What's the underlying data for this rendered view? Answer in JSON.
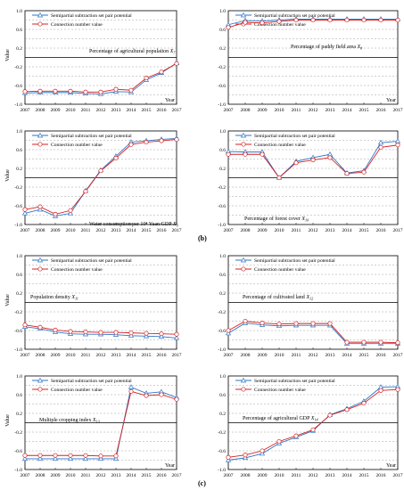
{
  "figure": {
    "panel_labels": [
      "(b)",
      "(c)"
    ],
    "legend": {
      "triangle_label": "Semipartial subtraction set pair potential",
      "circle_label": "Connection number value"
    },
    "colors": {
      "triangle": "#2e75c7",
      "circle": "#d42020",
      "axis": "#000000",
      "grid": "#888888"
    }
  },
  "chart_data": [
    {
      "type": "line",
      "title": "Percentage of agricultural population X7",
      "subscript_symbol": "X",
      "subscript": "7",
      "ylabel": "Value",
      "xlabel": "Year",
      "ylim": [
        -1.0,
        1.0
      ],
      "yticks": [
        "1.0",
        "0.6",
        "0.2",
        "-0.2",
        "-0.6",
        "-1.0"
      ],
      "categories": [
        "2007",
        "2008",
        "2009",
        "2010",
        "2011",
        "2012",
        "2013",
        "2014",
        "2015",
        "2016",
        "2017"
      ],
      "series": [
        {
          "name": "Semipartial subtraction set pair potential",
          "marker": "triangle",
          "values": [
            -0.76,
            -0.75,
            -0.75,
            -0.75,
            -0.77,
            -0.78,
            -0.73,
            -0.74,
            -0.48,
            -0.33,
            -0.12
          ]
        },
        {
          "name": "Connection number value",
          "marker": "circle",
          "values": [
            -0.73,
            -0.72,
            -0.72,
            -0.72,
            -0.74,
            -0.74,
            -0.68,
            -0.7,
            -0.44,
            -0.31,
            -0.13
          ]
        }
      ]
    },
    {
      "type": "line",
      "title": "Percentage of paddy field area X8",
      "subscript_symbol": "X",
      "subscript": "8",
      "ylabel": "Value",
      "xlabel": "Year",
      "ylim": [
        -1.0,
        1.0
      ],
      "yticks": [
        "1.0",
        "0.6",
        "0.2",
        "-0.2",
        "-0.6",
        "-1.0"
      ],
      "categories": [
        "2007",
        "2008",
        "2009",
        "2010",
        "2011",
        "2012",
        "2013",
        "2014",
        "2015",
        "2016",
        "2017"
      ],
      "series": [
        {
          "name": "Semipartial subtraction set pair potential",
          "marker": "triangle",
          "values": [
            0.7,
            0.79,
            0.78,
            0.8,
            0.82,
            0.82,
            0.82,
            0.82,
            0.82,
            0.82,
            0.82
          ]
        },
        {
          "name": "Connection number value",
          "marker": "circle",
          "values": [
            0.64,
            0.75,
            0.74,
            0.77,
            0.8,
            0.8,
            0.8,
            0.8,
            0.8,
            0.8,
            0.8
          ]
        }
      ]
    },
    {
      "type": "line",
      "title": "Water consumption per 10⁴ Yuan GDP X9",
      "subscript_symbol": "X",
      "subscript": "9",
      "ylabel": "Value",
      "xlabel": "",
      "ylim": [
        -1.0,
        1.0
      ],
      "yticks": [
        "1.0",
        "0.6",
        "0.2",
        "-0.2",
        "-0.6",
        "-1.0"
      ],
      "categories": [
        "2007",
        "2008",
        "2009",
        "2010",
        "2011",
        "2012",
        "2013",
        "2014",
        "2015",
        "2016",
        "2017"
      ],
      "series": [
        {
          "name": "Semipartial subtraction set pair potential",
          "marker": "triangle",
          "values": [
            -0.76,
            -0.68,
            -0.82,
            -0.76,
            -0.28,
            0.16,
            0.46,
            0.76,
            0.79,
            0.82,
            0.84
          ]
        },
        {
          "name": "Connection number value",
          "marker": "circle",
          "values": [
            -0.68,
            -0.62,
            -0.78,
            -0.7,
            -0.29,
            0.15,
            0.42,
            0.71,
            0.76,
            0.79,
            0.82
          ]
        }
      ]
    },
    {
      "type": "line",
      "title": "Percentage of forest cover X10",
      "subscript_symbol": "X",
      "subscript": "10",
      "ylabel": "",
      "xlabel": "",
      "ylim": [
        -1.0,
        1.0
      ],
      "yticks": [
        "1.0",
        "0.6",
        "0.2",
        "-0.2",
        "-0.6",
        "-1.0"
      ],
      "categories": [
        "2007",
        "2008",
        "2009",
        "2010",
        "2011",
        "2012",
        "2013",
        "2014",
        "2015",
        "2016",
        "2017"
      ],
      "series": [
        {
          "name": "Semipartial subtraction set pair potential",
          "marker": "triangle",
          "values": [
            0.56,
            0.55,
            0.55,
            0.0,
            0.35,
            0.43,
            0.5,
            0.1,
            0.15,
            0.75,
            0.78
          ]
        },
        {
          "name": "Connection number value",
          "marker": "circle",
          "values": [
            0.5,
            0.5,
            0.5,
            0.0,
            0.32,
            0.38,
            0.43,
            0.09,
            0.12,
            0.65,
            0.7
          ]
        }
      ]
    },
    {
      "type": "line",
      "title": "Population density X11",
      "subscript_symbol": "X",
      "subscript": "11",
      "ylabel": "Value",
      "xlabel": "",
      "ylim": [
        -1.0,
        1.0
      ],
      "yticks": [
        "1.0",
        "0.6",
        "0.2",
        "-0.2",
        "-0.6",
        "-1.0"
      ],
      "categories": [
        "2007",
        "2008",
        "2009",
        "2010",
        "2011",
        "2012",
        "2013",
        "2014",
        "2015",
        "2016",
        "2017"
      ],
      "series": [
        {
          "name": "Semipartial subtraction set pair potential",
          "marker": "triangle",
          "values": [
            -0.52,
            -0.56,
            -0.63,
            -0.67,
            -0.68,
            -0.68,
            -0.69,
            -0.71,
            -0.72,
            -0.73,
            -0.76
          ]
        },
        {
          "name": "Connection number value",
          "marker": "circle",
          "values": [
            -0.48,
            -0.53,
            -0.59,
            -0.62,
            -0.63,
            -0.64,
            -0.64,
            -0.65,
            -0.66,
            -0.67,
            -0.68
          ]
        }
      ]
    },
    {
      "type": "line",
      "title": "Percentage of cultivated land X12",
      "subscript_symbol": "X",
      "subscript": "12",
      "ylabel": "",
      "xlabel": "",
      "ylim": [
        -1.0,
        1.0
      ],
      "yticks": [
        "1.0",
        "0.6",
        "0.2",
        "-0.2",
        "-0.6",
        "-1.0"
      ],
      "categories": [
        "2007",
        "2008",
        "2009",
        "2010",
        "2011",
        "2012",
        "2013",
        "2014",
        "2015",
        "2016",
        "2017"
      ],
      "series": [
        {
          "name": "Semipartial subtraction set pair potential",
          "marker": "triangle",
          "values": [
            -0.66,
            -0.44,
            -0.48,
            -0.5,
            -0.49,
            -0.49,
            -0.49,
            -0.88,
            -0.88,
            -0.88,
            -0.88
          ]
        },
        {
          "name": "Connection number value",
          "marker": "circle",
          "values": [
            -0.6,
            -0.4,
            -0.44,
            -0.46,
            -0.45,
            -0.45,
            -0.45,
            -0.85,
            -0.85,
            -0.85,
            -0.86
          ]
        }
      ]
    },
    {
      "type": "line",
      "title": "Multiple cropping index X13",
      "subscript_symbol": "X",
      "subscript": "13",
      "ylabel": "Value",
      "xlabel": "Year",
      "ylim": [
        -1.0,
        1.0
      ],
      "yticks": [
        "1.0",
        "0.6",
        "0.2",
        "-0.2",
        "-0.6",
        "-1.0"
      ],
      "categories": [
        "2007",
        "2008",
        "2009",
        "2010",
        "2011",
        "2012",
        "2013",
        "2014",
        "2015",
        "2016",
        "2017"
      ],
      "series": [
        {
          "name": "Semipartial subtraction set pair potential",
          "marker": "triangle",
          "values": [
            -0.77,
            -0.77,
            -0.77,
            -0.77,
            -0.77,
            -0.77,
            -0.77,
            0.76,
            0.63,
            0.66,
            0.54
          ]
        },
        {
          "name": "Connection number value",
          "marker": "circle",
          "values": [
            -0.7,
            -0.7,
            -0.7,
            -0.7,
            -0.7,
            -0.71,
            -0.71,
            0.67,
            0.58,
            0.6,
            0.5
          ]
        }
      ]
    },
    {
      "type": "line",
      "title": "Percentage of agricultural GDP X14",
      "subscript_symbol": "X",
      "subscript": "14",
      "ylabel": "",
      "xlabel": "Year",
      "ylim": [
        -1.0,
        1.0
      ],
      "yticks": [
        "1.0",
        "0.6",
        "0.2",
        "-0.2",
        "-0.6",
        "-1.0"
      ],
      "categories": [
        "2007",
        "2008",
        "2009",
        "2010",
        "2011",
        "2012",
        "2013",
        "2014",
        "2015",
        "2016",
        "2017"
      ],
      "series": [
        {
          "name": "Semipartial subtraction set pair potential",
          "marker": "triangle",
          "values": [
            -0.8,
            -0.75,
            -0.66,
            -0.44,
            -0.31,
            -0.17,
            0.17,
            0.3,
            0.46,
            0.76,
            0.77
          ]
        },
        {
          "name": "Connection number value",
          "marker": "circle",
          "values": [
            -0.74,
            -0.69,
            -0.6,
            -0.4,
            -0.28,
            -0.15,
            0.16,
            0.28,
            0.42,
            0.69,
            0.71
          ]
        }
      ]
    }
  ]
}
